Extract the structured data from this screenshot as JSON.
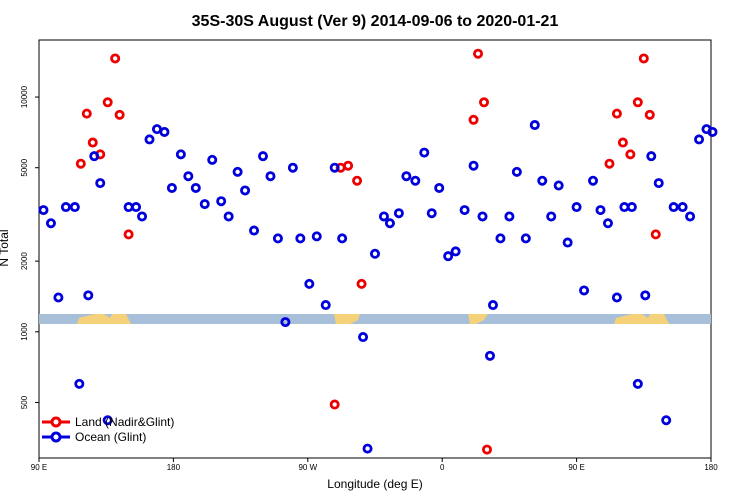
{
  "chart_data": {
    "type": "scatter",
    "title": "35S-30S August (Ver 9)   2014-09-06 to 2020-01-21",
    "xlabel": "Longitude (deg E)",
    "ylabel": "N Total",
    "x_ticks": [
      {
        "value": 90,
        "label": "90 E"
      },
      {
        "value": 180,
        "label": "180"
      },
      {
        "value": 270,
        "label": "90 W"
      },
      {
        "value": 360,
        "label": "0"
      },
      {
        "value": 450,
        "label": "90 E"
      },
      {
        "value": 540,
        "label": "180"
      }
    ],
    "y_ticks": [
      500,
      1000,
      2000,
      5000,
      10000
    ],
    "y_scale": "log",
    "xlim": [
      90,
      540
    ],
    "ylim": [
      290,
      17500
    ],
    "legend_position": "bottom-left",
    "colors": {
      "land": "#ee0000",
      "ocean": "#0000dd",
      "map_ocean": "#a8bfd9",
      "map_land": "#f5d27a"
    },
    "series": [
      {
        "name": "Land (Nadir&Glint)",
        "key": "land",
        "points": [
          [
            118,
            5200
          ],
          [
            122,
            8500
          ],
          [
            126,
            6400
          ],
          [
            131,
            5700
          ],
          [
            136,
            9500
          ],
          [
            141,
            14600
          ],
          [
            144,
            8400
          ],
          [
            150,
            2600
          ],
          [
            288,
            490
          ],
          [
            292,
            5000
          ],
          [
            297,
            5100
          ],
          [
            303,
            4400
          ],
          [
            306,
            1600
          ],
          [
            381,
            8000
          ],
          [
            384,
            15300
          ],
          [
            388,
            9500
          ],
          [
            390,
            315
          ],
          [
            472,
            5200
          ],
          [
            477,
            8500
          ],
          [
            481,
            6400
          ],
          [
            486,
            5700
          ],
          [
            491,
            9500
          ],
          [
            495,
            14600
          ],
          [
            499,
            8400
          ],
          [
            503,
            2600
          ]
        ]
      },
      {
        "name": "Ocean (Glint)",
        "key": "ocean",
        "points": [
          [
            93,
            3300
          ],
          [
            98,
            2900
          ],
          [
            103,
            1400
          ],
          [
            108,
            3400
          ],
          [
            114,
            3400
          ],
          [
            117,
            600
          ],
          [
            123,
            1430
          ],
          [
            127,
            5600
          ],
          [
            131,
            4300
          ],
          [
            136,
            420
          ],
          [
            150,
            3400
          ],
          [
            155,
            3400
          ],
          [
            159,
            3100
          ],
          [
            164,
            6600
          ],
          [
            169,
            7300
          ],
          [
            174,
            7100
          ],
          [
            179,
            4100
          ],
          [
            185,
            5700
          ],
          [
            190,
            4600
          ],
          [
            195,
            4100
          ],
          [
            201,
            3500
          ],
          [
            206,
            5400
          ],
          [
            212,
            3600
          ],
          [
            217,
            3100
          ],
          [
            223,
            4800
          ],
          [
            228,
            4000
          ],
          [
            234,
            2700
          ],
          [
            240,
            5600
          ],
          [
            245,
            4600
          ],
          [
            250,
            2500
          ],
          [
            255,
            1100
          ],
          [
            260,
            5000
          ],
          [
            265,
            2500
          ],
          [
            271,
            1600
          ],
          [
            276,
            2550
          ],
          [
            282,
            1300
          ],
          [
            288,
            5000
          ],
          [
            293,
            2500
          ],
          [
            307,
            950
          ],
          [
            310,
            318
          ],
          [
            315,
            2150
          ],
          [
            321,
            3100
          ],
          [
            325,
            2900
          ],
          [
            331,
            3200
          ],
          [
            336,
            4600
          ],
          [
            342,
            4400
          ],
          [
            348,
            5800
          ],
          [
            353,
            3200
          ],
          [
            358,
            4100
          ],
          [
            364,
            2100
          ],
          [
            369,
            2200
          ],
          [
            375,
            3300
          ],
          [
            381,
            5100
          ],
          [
            387,
            3100
          ],
          [
            392,
            790
          ],
          [
            394,
            1300
          ],
          [
            399,
            2500
          ],
          [
            405,
            3100
          ],
          [
            410,
            4800
          ],
          [
            416,
            2500
          ],
          [
            422,
            7600
          ],
          [
            427,
            4400
          ],
          [
            433,
            3100
          ],
          [
            438,
            4200
          ],
          [
            444,
            2400
          ],
          [
            450,
            3400
          ],
          [
            455,
            1500
          ],
          [
            461,
            4400
          ],
          [
            466,
            3300
          ],
          [
            471,
            2900
          ],
          [
            477,
            1400
          ],
          [
            482,
            3400
          ],
          [
            487,
            3400
          ],
          [
            491,
            600
          ],
          [
            496,
            1430
          ],
          [
            500,
            5600
          ],
          [
            505,
            4300
          ],
          [
            510,
            420
          ],
          [
            515,
            3400
          ],
          [
            521,
            3400
          ],
          [
            526,
            3100
          ],
          [
            532,
            6600
          ],
          [
            537,
            7300
          ],
          [
            541,
            7100
          ]
        ]
      }
    ]
  }
}
